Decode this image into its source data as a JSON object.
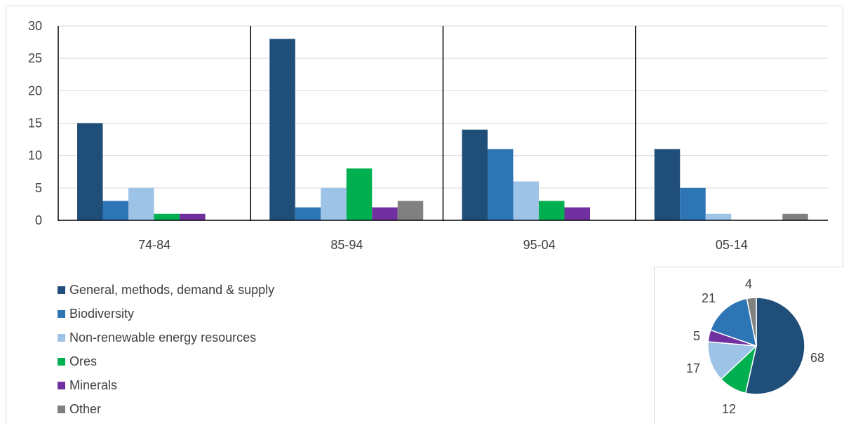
{
  "chart_data": [
    {
      "type": "bar",
      "categories": [
        "74-84",
        "85-94",
        "95-04",
        "05-14"
      ],
      "series": [
        {
          "name": "General, methods, demand & supply",
          "values": [
            15,
            28,
            14,
            11
          ],
          "color": "#1f4e79"
        },
        {
          "name": "Biodiversity",
          "values": [
            3,
            2,
            11,
            5
          ],
          "color": "#2e75b6"
        },
        {
          "name": "Non-renewable energy resources",
          "values": [
            5,
            5,
            6,
            1
          ],
          "color": "#9dc3e6"
        },
        {
          "name": "Ores",
          "values": [
            1,
            8,
            3,
            0
          ],
          "color": "#00b050"
        },
        {
          "name": "Minerals",
          "values": [
            1,
            2,
            2,
            0
          ],
          "color": "#7030a0"
        },
        {
          "name": "Other",
          "values": [
            0,
            3,
            0,
            1
          ],
          "color": "#808080"
        }
      ],
      "ylim": [
        0,
        30
      ],
      "yticks": [
        "0",
        "5",
        "10",
        "15",
        "20",
        "25",
        "30"
      ],
      "grid": true,
      "legend_placement": "bottom-left"
    },
    {
      "type": "pie",
      "labels": [
        "General, methods, demand & supply",
        "Ores",
        "Non-renewable energy resources",
        "Minerals",
        "Biodiversity",
        "Other"
      ],
      "values": [
        68,
        12,
        17,
        5,
        21,
        4
      ],
      "value_labels": [
        "68",
        "12",
        "17",
        "5",
        "21",
        "4"
      ],
      "colors": [
        "#1f4e79",
        "#00b050",
        "#9dc3e6",
        "#7030a0",
        "#2e75b6",
        "#808080"
      ]
    }
  ]
}
